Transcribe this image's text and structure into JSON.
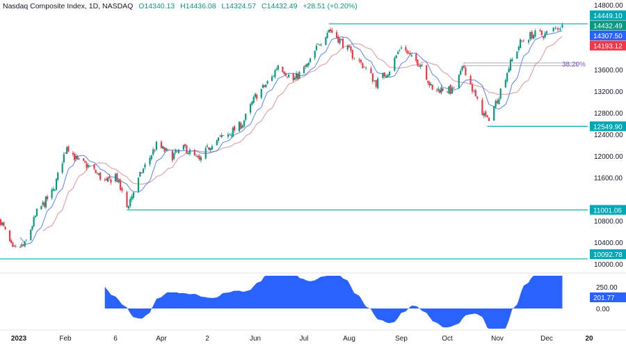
{
  "header": {
    "symbol": "Nasdaq Composite Index, 1D, NASDAQ",
    "open": "O14340.13",
    "high": "H14436.08",
    "low": "L14324.57",
    "close": "C14432.49",
    "change": "+28.51 (+0.20%)"
  },
  "colors": {
    "up": "#089981",
    "down": "#f23645",
    "ma_fast": "#2962ff",
    "ma_slow": "#e2a3a8",
    "level": "#00a8b5",
    "oscillator": "#2962ff",
    "fib": "#9598a1"
  },
  "chart_data": {
    "type": "candlestick",
    "price_axis": {
      "range": [
        10000,
        14800
      ],
      "ticks": [
        "14800.00",
        "13600.00",
        "13200.00",
        "12800.00",
        "12400.00",
        "12000.00",
        "11600.00",
        "10800.00",
        "10400.00",
        "10000.00"
      ]
    },
    "time_axis": [
      {
        "label": "2023",
        "date": "2023-01-01",
        "bold": true
      },
      {
        "label": "Feb",
        "date": "2023-02-01"
      },
      {
        "label": "6",
        "date": "2023-03-06"
      },
      {
        "label": "Apr",
        "date": "2023-04-03"
      },
      {
        "label": "2",
        "date": "2023-05-02"
      },
      {
        "label": "Jun",
        "date": "2023-06-01"
      },
      {
        "label": "Jul",
        "date": "2023-07-03"
      },
      {
        "label": "Aug",
        "date": "2023-08-01"
      },
      {
        "label": "Sep",
        "date": "2023-09-01"
      },
      {
        "label": "Oct",
        "date": "2023-10-02"
      },
      {
        "label": "Nov",
        "date": "2023-11-01"
      },
      {
        "label": "Dec",
        "date": "2023-12-01"
      },
      {
        "label": "20",
        "date": "2023-12-20",
        "bold": true
      }
    ],
    "closes": [
      [
        "2022-12-20",
        10800
      ],
      [
        "2022-12-28",
        10250
      ],
      [
        "2023-01-05",
        10350
      ],
      [
        "2023-01-13",
        10950
      ],
      [
        "2023-01-24",
        11350
      ],
      [
        "2023-02-02",
        12200
      ],
      [
        "2023-02-09",
        11900
      ],
      [
        "2023-02-17",
        11800
      ],
      [
        "2023-02-28",
        11500
      ],
      [
        "2023-03-06",
        11650
      ],
      [
        "2023-03-13",
        11050
      ],
      [
        "2023-03-22",
        11700
      ],
      [
        "2023-03-31",
        12200
      ],
      [
        "2023-04-10",
        12000
      ],
      [
        "2023-04-18",
        12150
      ],
      [
        "2023-04-27",
        11900
      ],
      [
        "2023-05-05",
        12250
      ],
      [
        "2023-05-15",
        12400
      ],
      [
        "2023-05-24",
        12600
      ],
      [
        "2023-06-01",
        13100
      ],
      [
        "2023-06-12",
        13450
      ],
      [
        "2023-06-16",
        13700
      ],
      [
        "2023-06-26",
        13400
      ],
      [
        "2023-07-06",
        13700
      ],
      [
        "2023-07-13",
        14100
      ],
      [
        "2023-07-19",
        14350
      ],
      [
        "2023-07-26",
        14150
      ],
      [
        "2023-08-02",
        13900
      ],
      [
        "2023-08-10",
        13650
      ],
      [
        "2023-08-17",
        13350
      ],
      [
        "2023-08-25",
        13600
      ],
      [
        "2023-09-01",
        14050
      ],
      [
        "2023-09-08",
        13800
      ],
      [
        "2023-09-15",
        13700
      ],
      [
        "2023-09-22",
        13200
      ],
      [
        "2023-09-29",
        13250
      ],
      [
        "2023-10-05",
        13200
      ],
      [
        "2023-10-12",
        13650
      ],
      [
        "2023-10-20",
        13000
      ],
      [
        "2023-10-26",
        12650
      ],
      [
        "2023-11-01",
        13050
      ],
      [
        "2023-11-08",
        13650
      ],
      [
        "2023-11-15",
        14100
      ],
      [
        "2023-11-22",
        14250
      ],
      [
        "2023-11-30",
        14250
      ],
      [
        "2023-12-08",
        14432.49
      ]
    ],
    "levels": [
      {
        "value": 14449.1,
        "label": "14449.10",
        "from": "2023-07-19"
      },
      {
        "value": 12549.9,
        "label": "12549.90",
        "from": "2023-10-26"
      },
      {
        "value": 11001.06,
        "label": "11001.06",
        "from": "2023-03-13"
      },
      {
        "value": 10092.78,
        "label": "10092.78",
        "from": "2022-12-01"
      }
    ],
    "last_tags": [
      {
        "label": "14432.49",
        "value": 14432.49,
        "color": "#089981"
      },
      {
        "label": "14307.50",
        "value": 14307.5,
        "color": "#2962ff"
      },
      {
        "label": "14193.12",
        "value": 14193.12,
        "color": "#f23645"
      }
    ],
    "fib": {
      "label": "38.20%",
      "value": 13700,
      "from": "2023-10-12"
    },
    "oscillator": {
      "ticks": [
        "250.00",
        "0.00"
      ],
      "last": 201.77,
      "last_label": "201.77",
      "range": [
        -250,
        350
      ]
    }
  }
}
